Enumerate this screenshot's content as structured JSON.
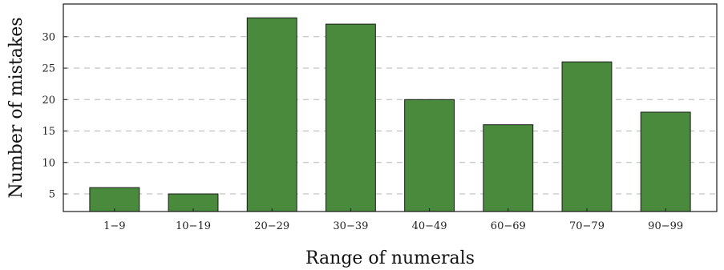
{
  "chart_data": {
    "type": "bar",
    "title": "",
    "xlabel": "Range of numerals",
    "ylabel": "Number of mistakes",
    "categories": [
      "1−9",
      "10−19",
      "20−29",
      "30−39",
      "40−49",
      "60−69",
      "70−79",
      "90−99"
    ],
    "values": [
      6,
      5,
      33,
      32,
      20,
      16,
      26,
      18
    ],
    "ylim": [
      2.2,
      35.2
    ],
    "yticks": [
      5,
      10,
      15,
      20,
      25,
      30
    ],
    "grid": true,
    "grid_style": "dashed horizontal",
    "bar_color": "#4a8a3c",
    "bar_edge_color": "#1a1a1a"
  }
}
